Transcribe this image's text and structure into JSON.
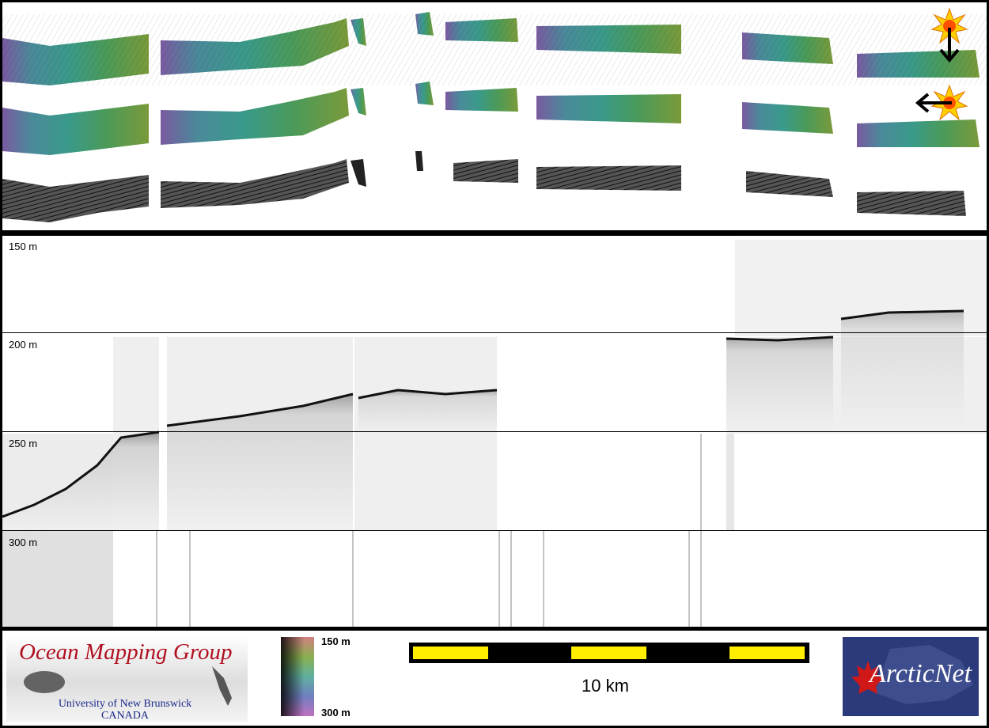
{
  "profile": {
    "depth_labels": [
      "150 m",
      "200 m",
      "250 m",
      "300 m"
    ]
  },
  "legend": {
    "organization": {
      "title": "Ocean Mapping Group",
      "line1": "University of New Brunswick",
      "line2": "CANADA"
    },
    "colorbar": {
      "top_label": "150 m",
      "bottom_label": "300 m"
    },
    "scalebar": {
      "label": "10 km"
    },
    "logo": {
      "text": "ArcticNet"
    }
  },
  "colors": {
    "background": "#000000",
    "panel": "#ffffff",
    "scalebar_fill": "#ffee00",
    "omg_red": "#b01020",
    "omg_blue": "#1a2a8a",
    "arcticnet_bg": "#2b3a7a",
    "maple_red": "#d01818"
  },
  "icons": [
    "sun-icon",
    "arrow-down-icon",
    "arrow-left-icon",
    "maple-leaf-icon"
  ]
}
